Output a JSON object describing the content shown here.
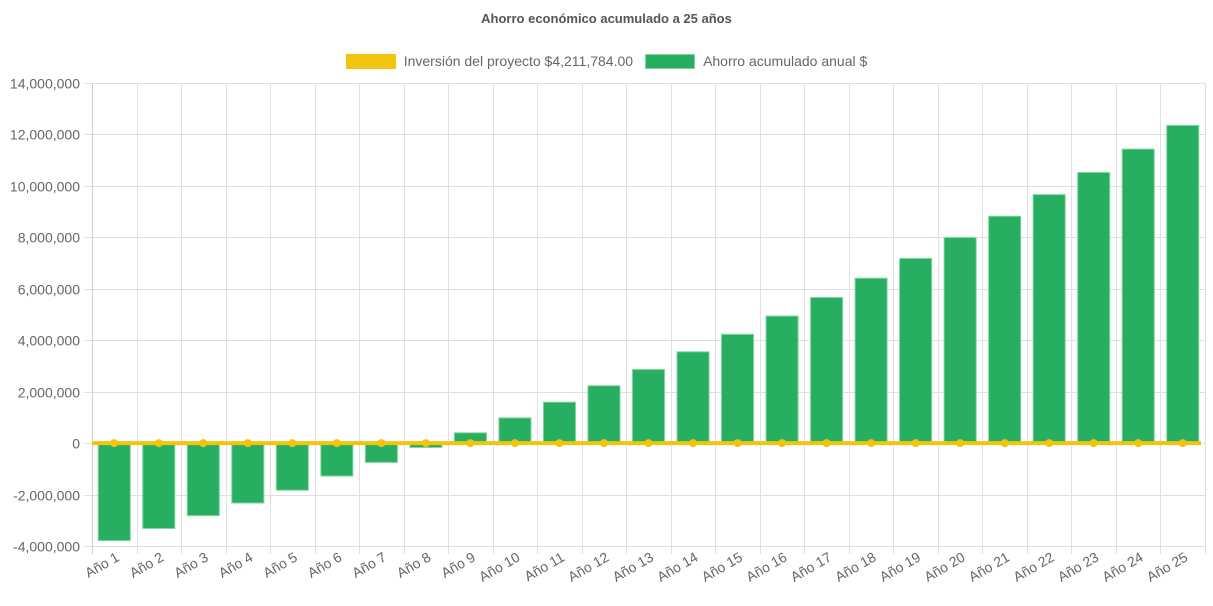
{
  "chart_data": {
    "type": "bar",
    "title": "Ahorro económico acumulado a 25 años",
    "xlabel": "",
    "ylabel": "",
    "categories": [
      "Año 1",
      "Año 2",
      "Año 3",
      "Año 4",
      "Año 5",
      "Año 6",
      "Año 7",
      "Año 8",
      "Año 9",
      "Año 10",
      "Año 11",
      "Año 12",
      "Año 13",
      "Año 14",
      "Año 15",
      "Año 16",
      "Año 17",
      "Año 18",
      "Año 19",
      "Año 20",
      "Año 21",
      "Año 22",
      "Año 23",
      "Año 24",
      "Año 25"
    ],
    "series": [
      {
        "name": "Inversión del proyecto $4,211,784.00",
        "type": "line",
        "color": "#f1c40f",
        "values": [
          0,
          0,
          0,
          0,
          0,
          0,
          0,
          0,
          0,
          0,
          0,
          0,
          0,
          0,
          0,
          0,
          0,
          0,
          0,
          0,
          0,
          0,
          0,
          0,
          0
        ]
      },
      {
        "name": "Ahorro acumulado anual $",
        "type": "bar",
        "color": "#27ae60",
        "values": [
          -3790000,
          -3320000,
          -2820000,
          -2330000,
          -1830000,
          -1280000,
          -750000,
          -170000,
          400000,
          980000,
          1590000,
          2230000,
          2860000,
          3550000,
          4230000,
          4940000,
          5660000,
          6410000,
          7180000,
          7990000,
          8820000,
          9660000,
          10520000,
          11430000,
          12350000
        ]
      }
    ],
    "ylim": [
      -4000000,
      14000000
    ],
    "yticks": [
      -4000000,
      -2000000,
      0,
      2000000,
      4000000,
      6000000,
      8000000,
      10000000,
      12000000,
      14000000
    ],
    "ytick_labels": [
      "-4,000,000",
      "-2,000,000",
      "0",
      "2,000,000",
      "4,000,000",
      "6,000,000",
      "8,000,000",
      "10,000,000",
      "12,000,000",
      "14,000,000"
    ],
    "grid": true,
    "legend_position": "top"
  }
}
